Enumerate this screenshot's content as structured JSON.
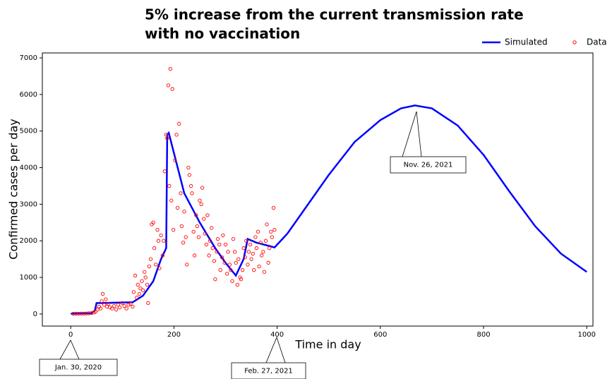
{
  "chart_data": {
    "type": "line",
    "title": [
      "5% increase from the current transmission rate",
      "with no vaccination"
    ],
    "x_label": "Time in day",
    "y_label": "Confirmed cases per day",
    "xlim": [
      -55,
      1012
    ],
    "ylim": [
      -330,
      7135
    ],
    "xticks": [
      0,
      200,
      400,
      600,
      800,
      1000
    ],
    "yticks": [
      0,
      1000,
      2000,
      3000,
      4000,
      5000,
      6000,
      7000
    ],
    "grid": false,
    "legend": "top-right",
    "annotations": [
      "Nov. 26, 2021",
      "Jan. 30, 2020",
      "Feb. 27, 2021"
    ],
    "series": [
      {
        "name": "Simulated",
        "type": "line",
        "color": "#0000ff",
        "x": [
          0,
          40,
          47,
          50,
          60,
          120,
          140,
          160,
          175,
          185,
          187,
          190,
          200,
          220,
          250,
          280,
          300,
          320,
          335,
          343,
          360,
          395,
          420,
          450,
          500,
          550,
          600,
          640,
          667,
          700,
          750,
          800,
          850,
          900,
          950,
          1000
        ],
        "values": [
          10,
          20,
          100,
          300,
          300,
          320,
          500,
          900,
          1500,
          1800,
          4900,
          4950,
          4400,
          3300,
          2500,
          1800,
          1400,
          1050,
          1500,
          2050,
          1950,
          1820,
          2200,
          2800,
          3800,
          4700,
          5300,
          5620,
          5700,
          5620,
          5150,
          4350,
          3350,
          2400,
          1650,
          1150
        ]
      },
      {
        "name": "Data",
        "type": "scatter",
        "color": "#ff0000",
        "x": [
          5,
          10,
          15,
          20,
          25,
          30,
          35,
          40,
          45,
          48,
          52,
          55,
          58,
          60,
          62,
          65,
          68,
          70,
          73,
          76,
          80,
          84,
          88,
          92,
          95,
          100,
          104,
          108,
          112,
          116,
          120,
          122,
          125,
          128,
          130,
          133,
          135,
          138,
          140,
          143,
          145,
          148,
          150,
          152,
          155,
          157,
          160,
          162,
          165,
          168,
          170,
          172,
          175,
          178,
          180,
          182,
          185,
          187,
          189,
          191,
          193,
          195,
          197,
          199,
          202,
          205,
          207,
          210,
          213,
          215,
          218,
          220,
          223,
          225,
          228,
          230,
          233,
          235,
          238,
          240,
          243,
          245,
          248,
          250,
          253,
          255,
          258,
          260,
          263,
          265,
          268,
          270,
          273,
          275,
          278,
          280,
          283,
          285,
          288,
          290,
          293,
          295,
          298,
          300,
          303,
          305,
          308,
          310,
          313,
          315,
          318,
          320,
          323,
          325,
          328,
          330,
          333,
          335,
          338,
          340,
          343,
          345,
          348,
          350,
          353,
          355,
          358,
          360,
          363,
          365,
          368,
          370,
          373,
          375,
          378,
          380,
          383,
          385,
          388,
          390,
          393,
          395
        ],
        "values": [
          5,
          10,
          8,
          12,
          10,
          15,
          20,
          25,
          40,
          60,
          120,
          200,
          150,
          350,
          550,
          250,
          400,
          200,
          280,
          180,
          150,
          220,
          120,
          250,
          180,
          300,
          220,
          150,
          250,
          280,
          200,
          600,
          1050,
          450,
          800,
          550,
          700,
          900,
          650,
          1150,
          1000,
          800,
          300,
          1300,
          1500,
          2450,
          2500,
          1800,
          1350,
          2300,
          2000,
          1250,
          2150,
          1600,
          2000,
          3900,
          4900,
          4800,
          6250,
          3500,
          6700,
          3100,
          6150,
          2300,
          4200,
          4900,
          2900,
          5200,
          3300,
          2400,
          1950,
          2800,
          2100,
          1350,
          4000,
          3800,
          3500,
          3300,
          2250,
          1600,
          2700,
          2400,
          2100,
          3100,
          3000,
          3450,
          2600,
          2200,
          1900,
          2700,
          1600,
          2000,
          2350,
          1800,
          1450,
          950,
          1700,
          2050,
          1900,
          1200,
          1550,
          2150,
          1400,
          1900,
          1100,
          1700,
          1350,
          1200,
          900,
          2050,
          1700,
          1400,
          800,
          1500,
          1000,
          950,
          1200,
          1800,
          1550,
          2000,
          1350,
          1700,
          1900,
          1500,
          1650,
          1200,
          2100,
          1800,
          2250,
          1300,
          1950,
          1600,
          1700,
          1150,
          2000,
          2450,
          1400,
          1800,
          2250,
          2100,
          2900,
          2300
        ]
      }
    ]
  }
}
